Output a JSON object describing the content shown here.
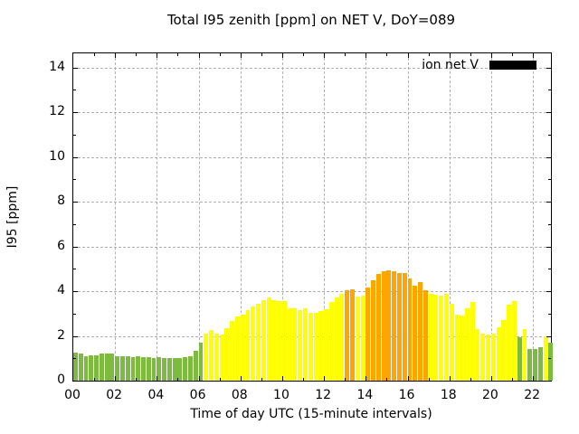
{
  "chart_data": {
    "type": "bar",
    "title": "Total I95 zenith [ppm] on NET V, DoY=089",
    "xlabel": "Time of day UTC (15-minute intervals)",
    "ylabel": "I95 [ppm]",
    "legend": [
      {
        "label": "ion net V",
        "swatch_color": "#000000"
      }
    ],
    "legend_position": "top-right-inside",
    "grid": "dashed gray, every 2 hours and every 2 ppm, behind bars",
    "grid_color": "#b0b0b0",
    "xlim_hours": [
      0,
      22.86
    ],
    "ylim": [
      0,
      14.63
    ],
    "ytick_values": [
      0,
      2,
      4,
      6,
      8,
      10,
      12,
      14
    ],
    "xtick_hours": [
      0,
      2,
      4,
      6,
      8,
      10,
      12,
      14,
      16,
      18,
      20,
      22
    ],
    "xtick_labels": [
      "00",
      "02",
      "04",
      "06",
      "08",
      "10",
      "12",
      "14",
      "16",
      "18",
      "20",
      "22"
    ],
    "minor_tick_every_hours": 1,
    "minor_ytick_every_ppm": 1,
    "start_time": "00:00",
    "interval_minutes": 15,
    "bar_color_rule": {
      "below_2_ppm": "#7cbb3f",
      "2_to_4_ppm": "#ffff00",
      "at_or_above_4_ppm": "#ffa500"
    },
    "series": [
      {
        "name": "ion net V",
        "values": [
          1.25,
          1.2,
          1.1,
          1.15,
          1.15,
          1.2,
          1.2,
          1.2,
          1.1,
          1.1,
          1.1,
          1.05,
          1.1,
          1.05,
          1.05,
          1.0,
          1.05,
          1.0,
          1.0,
          1.0,
          1.0,
          1.05,
          1.1,
          1.35,
          1.7,
          2.1,
          2.25,
          2.1,
          2.05,
          2.35,
          2.65,
          2.85,
          2.95,
          3.15,
          3.3,
          3.45,
          3.6,
          3.7,
          3.6,
          3.55,
          3.55,
          3.25,
          3.25,
          3.15,
          3.25,
          3.05,
          3.05,
          3.1,
          3.2,
          3.5,
          3.7,
          3.9,
          4.05,
          4.1,
          3.75,
          3.8,
          4.15,
          4.5,
          4.75,
          4.9,
          4.95,
          4.9,
          4.8,
          4.8,
          4.55,
          4.25,
          4.4,
          4.05,
          3.9,
          3.85,
          3.8,
          3.9,
          3.45,
          2.95,
          2.9,
          3.25,
          3.5,
          2.3,
          2.1,
          2.05,
          2.1,
          2.4,
          2.7,
          3.4,
          3.55,
          1.95,
          2.3,
          1.4,
          1.4,
          1.5,
          2.0,
          1.7
        ]
      }
    ]
  }
}
